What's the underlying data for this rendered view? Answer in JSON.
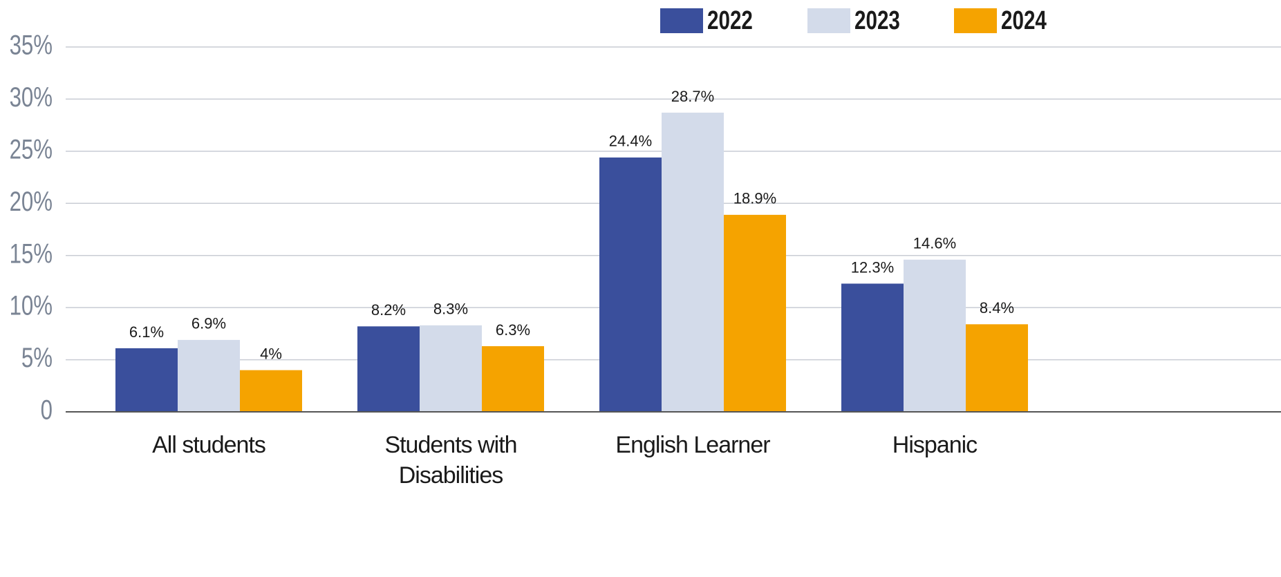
{
  "chart_data": {
    "type": "bar",
    "categories": [
      "All students",
      "Students with Disabilities",
      "English Learner",
      "Hispanic"
    ],
    "series": [
      {
        "name": "2022",
        "color": "#3a4f9c",
        "values": [
          6.1,
          8.2,
          24.4,
          12.3
        ],
        "value_labels": [
          "6.1%",
          "8.2%",
          "24.4%",
          "12.3%"
        ]
      },
      {
        "name": "2023",
        "color": "#d3dbea",
        "values": [
          6.9,
          8.3,
          28.7,
          14.6
        ],
        "value_labels": [
          "6.9%",
          "8.3%",
          "28.7%",
          "14.6%"
        ]
      },
      {
        "name": "2024",
        "color": "#f5a300",
        "values": [
          4,
          6.3,
          18.9,
          8.4
        ],
        "value_labels": [
          "4%",
          "6.3%",
          "18.9%",
          "8.4%"
        ]
      }
    ],
    "ylim": [
      0,
      35
    ],
    "yticks": [
      0,
      {
        "value": 5,
        "label": "5%"
      },
      {
        "value": 10,
        "label": "10%"
      },
      {
        "value": 15,
        "label": "15%"
      },
      {
        "value": 20,
        "label": "20%"
      },
      {
        "value": 25,
        "label": "25%"
      },
      {
        "value": 30,
        "label": "30%"
      },
      {
        "value": 35,
        "label": "35%"
      }
    ],
    "grid": true,
    "legend": "top-right"
  }
}
